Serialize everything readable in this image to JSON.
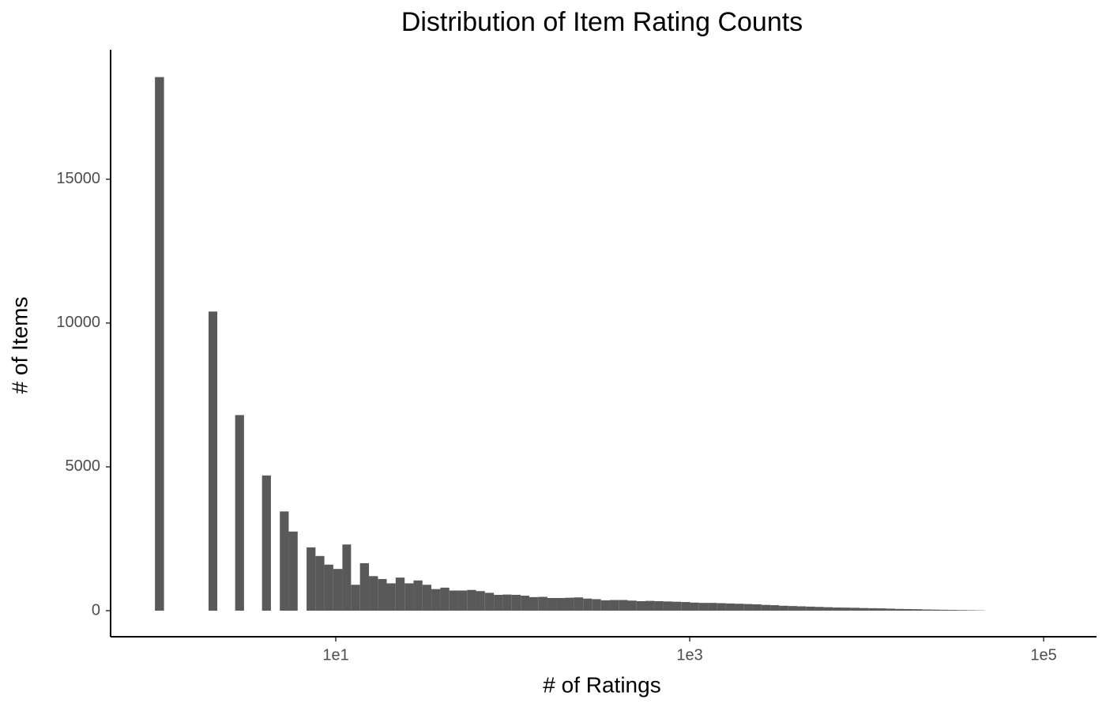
{
  "chart_data": {
    "type": "histogram",
    "title": "Distribution of Item Rating Counts",
    "x_label": "# of Ratings",
    "y_label": "# of Items",
    "color": "#595959",
    "xscale": "log",
    "grid": false,
    "bins": [
      0.951,
      1.07,
      1.2,
      1.35,
      1.51,
      1.7,
      1.91,
      2.14,
      2.41,
      2.7,
      3.03,
      3.41,
      3.83,
      4.3,
      4.83,
      5.42,
      6.09,
      6.84,
      7.68,
      8.62,
      9.68,
      10.9,
      12.2,
      13.7,
      15.4,
      17.3,
      19.4,
      21.8,
      24.5,
      27.5,
      30.9,
      34.7,
      39,
      43.8,
      49.2,
      55.2,
      62,
      69.6,
      78.2,
      87.8,
      98.6,
      111,
      124,
      140,
      157,
      176,
      198,
      222,
      250,
      280,
      315,
      354,
      397,
      446,
      501,
      562,
      632,
      709,
      797,
      895,
      1005,
      1128,
      1267,
      1423,
      1598,
      1795,
      2016,
      2264,
      2542,
      2855,
      3206,
      3601,
      4044,
      4541,
      5100,
      5728,
      6432,
      7224,
      8113,
      9111,
      10230,
      11490,
      12910,
      14490,
      16280,
      18280,
      20530,
      23050,
      25890,
      29080,
      32660,
      36670,
      41180,
      46250
    ],
    "values": [
      18550,
      0,
      0,
      0,
      0,
      0,
      10400,
      0,
      0,
      6800,
      0,
      0,
      4700,
      0,
      3450,
      2750,
      0,
      2200,
      1900,
      1600,
      1450,
      2300,
      900,
      1650,
      1200,
      1100,
      950,
      1150,
      950,
      1050,
      900,
      750,
      800,
      700,
      700,
      720,
      680,
      620,
      550,
      560,
      550,
      520,
      470,
      480,
      440,
      440,
      450,
      460,
      420,
      400,
      360,
      370,
      370,
      350,
      330,
      340,
      330,
      320,
      310,
      300,
      280,
      270,
      270,
      260,
      250,
      240,
      230,
      220,
      200,
      190,
      170,
      160,
      150,
      140,
      130,
      120,
      110,
      105,
      100,
      90,
      85,
      80,
      70,
      60,
      55,
      50,
      40,
      35,
      30,
      25,
      20,
      15,
      10
    ],
    "xlim": [
      0.534,
      199000
    ],
    "ylim": [
      -907,
      19500
    ],
    "xticks": [
      {
        "value": 10,
        "label": "1e1"
      },
      {
        "value": 1000,
        "label": "1e3"
      },
      {
        "value": 100000,
        "label": "1e5"
      }
    ],
    "yticks": [
      0,
      5000,
      10000,
      15000
    ]
  }
}
